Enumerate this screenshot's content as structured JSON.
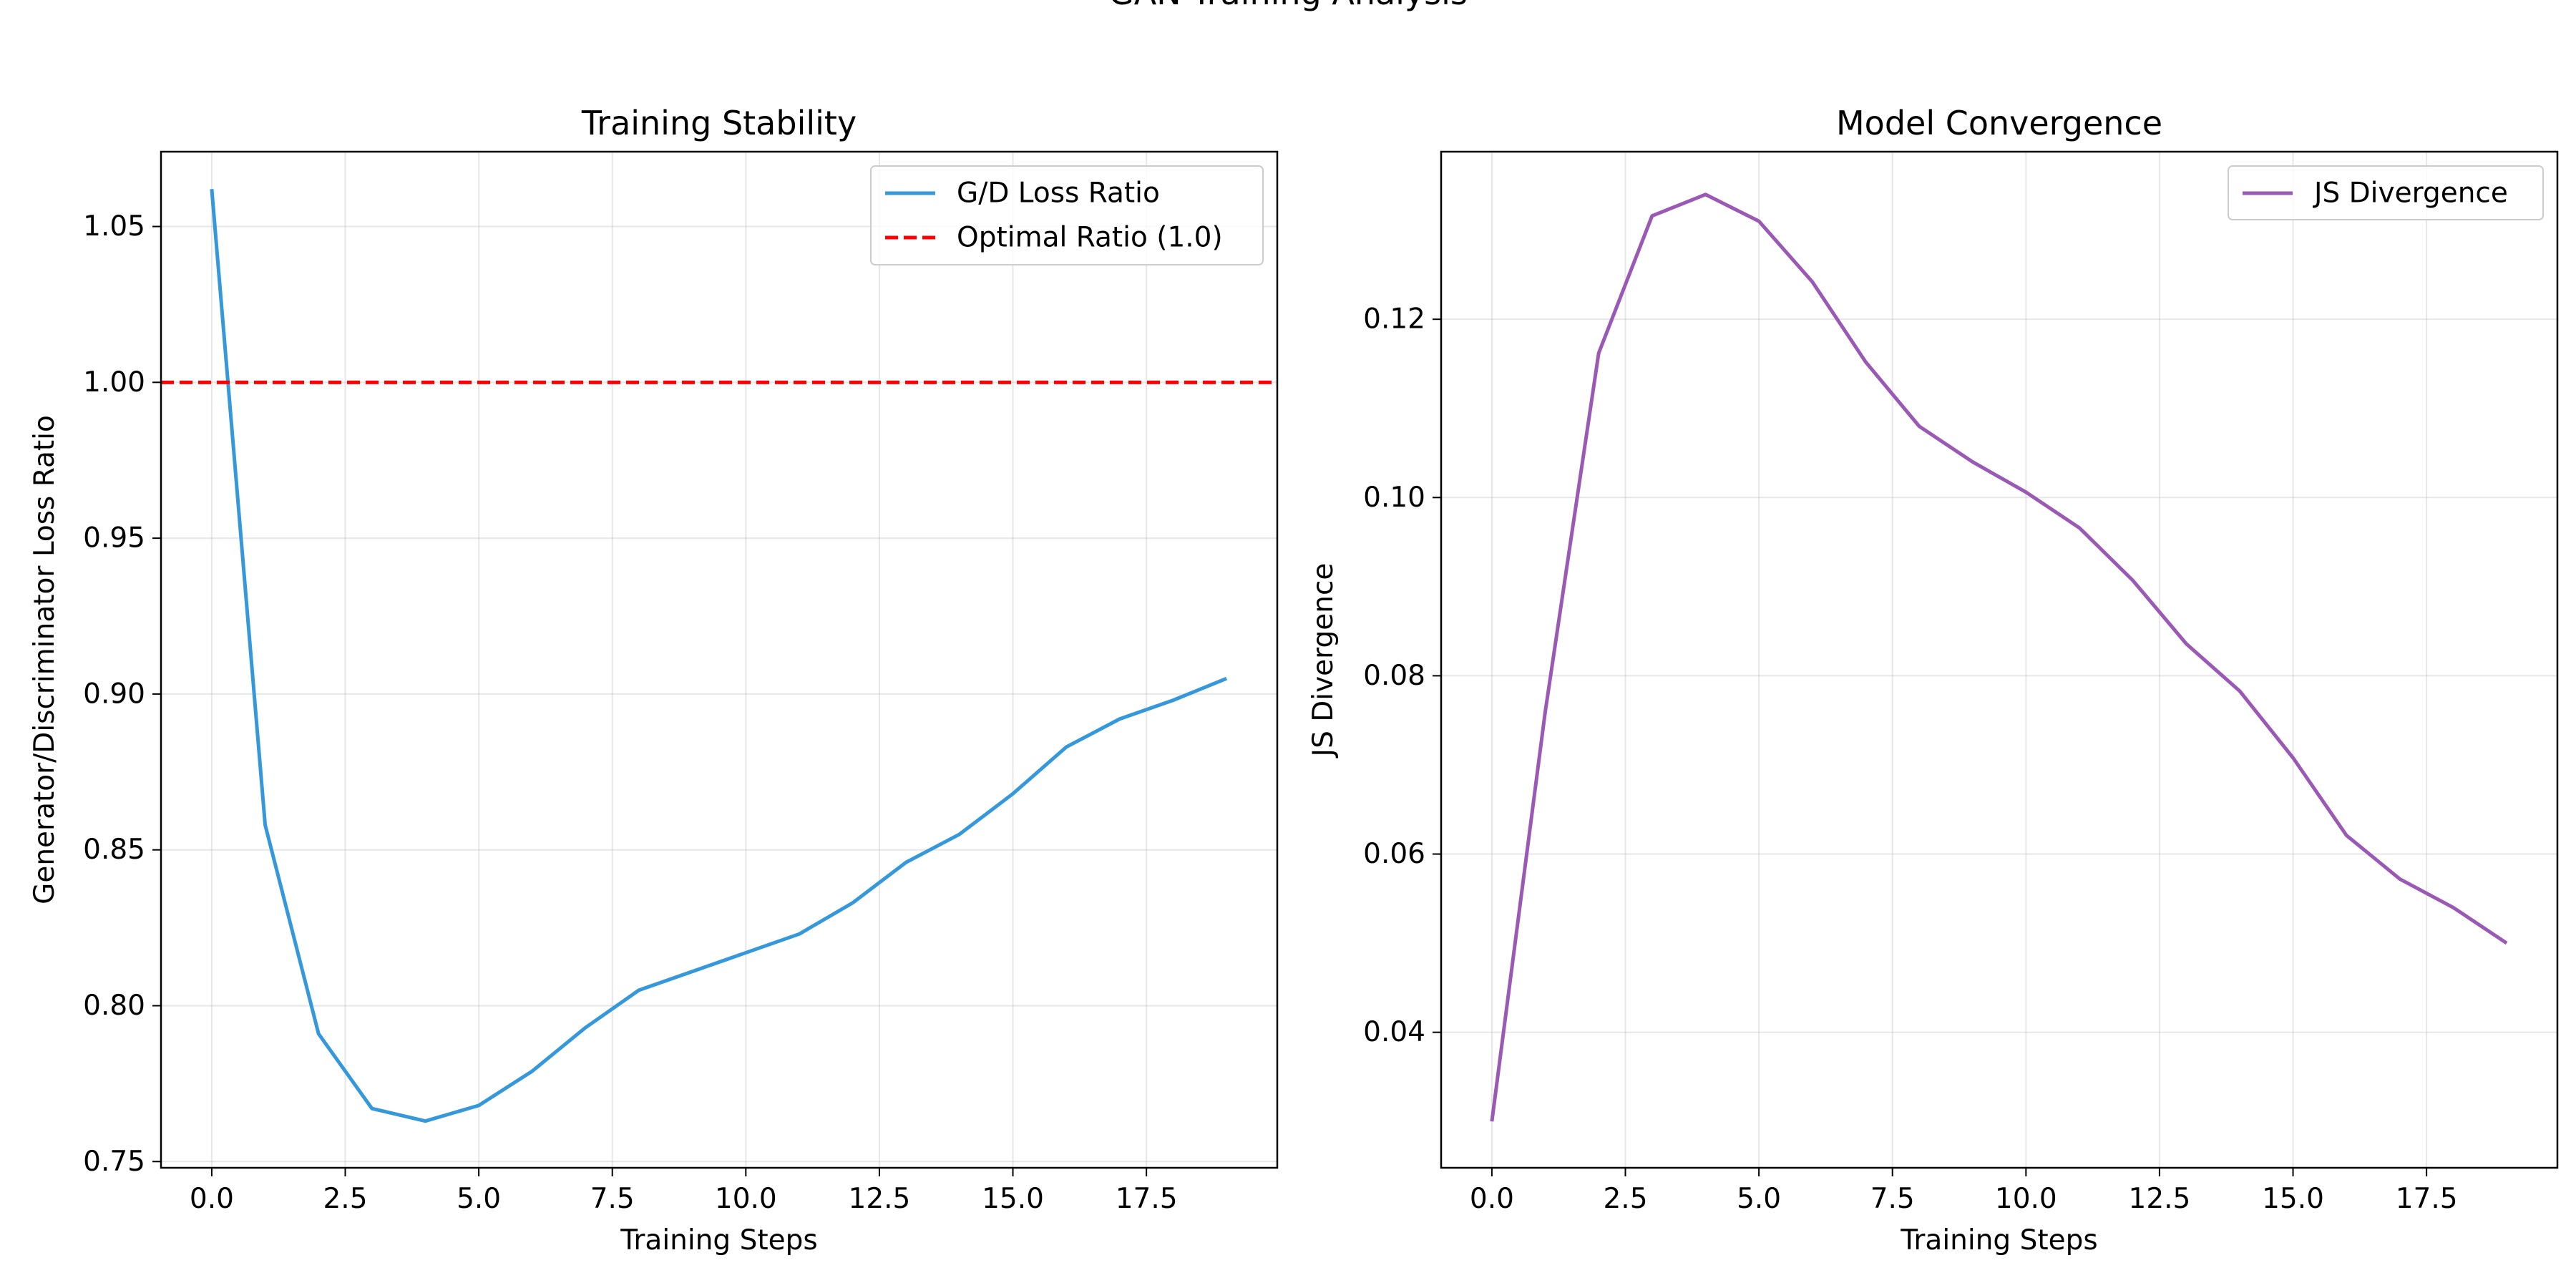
{
  "figure": {
    "suptitle": "GAN Training Analysis"
  },
  "chart_data": [
    {
      "type": "line",
      "title": "Training Stability",
      "xlabel": "Training Steps",
      "ylabel": "Generator/Discriminator Loss Ratio",
      "xlim": [
        -0.95,
        19.95
      ],
      "ylim": [
        0.748,
        1.074
      ],
      "x_ticks": [
        0.0,
        2.5,
        5.0,
        7.5,
        10.0,
        12.5,
        15.0,
        17.5
      ],
      "x_tick_labels": [
        "0.0",
        "2.5",
        "5.0",
        "7.5",
        "10.0",
        "12.5",
        "15.0",
        "17.5"
      ],
      "y_ticks": [
        0.75,
        0.8,
        0.85,
        0.9,
        0.95,
        1.0,
        1.05
      ],
      "y_tick_labels": [
        "0.75",
        "0.80",
        "0.85",
        "0.90",
        "0.95",
        "1.00",
        "1.05"
      ],
      "grid": true,
      "legend_position": "upper right",
      "x": [
        0,
        1,
        2,
        3,
        4,
        5,
        6,
        7,
        8,
        9,
        10,
        11,
        12,
        13,
        14,
        15,
        16,
        17,
        18,
        19
      ],
      "series": [
        {
          "name": "G/D Loss Ratio",
          "style": "solid",
          "color": "#3498db",
          "values": [
            1.062,
            0.858,
            0.791,
            0.767,
            0.763,
            0.768,
            0.779,
            0.793,
            0.805,
            0.811,
            0.817,
            0.823,
            0.833,
            0.846,
            0.855,
            0.868,
            0.883,
            0.892,
            0.898,
            0.905
          ]
        },
        {
          "name": "Optimal Ratio (1.0)",
          "style": "dashed",
          "color": "#ff0000",
          "kind": "hline",
          "y": 1.0
        }
      ]
    },
    {
      "type": "line",
      "title": "Model Convergence",
      "xlabel": "Training Steps",
      "ylabel": "JS Divergence",
      "xlim": [
        -0.95,
        19.95
      ],
      "ylim": [
        0.0248,
        0.1388
      ],
      "x_ticks": [
        0.0,
        2.5,
        5.0,
        7.5,
        10.0,
        12.5,
        15.0,
        17.5
      ],
      "x_tick_labels": [
        "0.0",
        "2.5",
        "5.0",
        "7.5",
        "10.0",
        "12.5",
        "15.0",
        "17.5"
      ],
      "y_ticks": [
        0.04,
        0.06,
        0.08,
        0.1,
        0.12
      ],
      "y_tick_labels": [
        "0.04",
        "0.06",
        "0.08",
        "0.10",
        "0.12"
      ],
      "grid": true,
      "legend_position": "upper right",
      "x": [
        0,
        1,
        2,
        3,
        4,
        5,
        6,
        7,
        8,
        9,
        10,
        11,
        12,
        13,
        14,
        15,
        16,
        17,
        18,
        19
      ],
      "series": [
        {
          "name": "JS Divergence",
          "style": "solid",
          "color": "#9b59b6",
          "values": [
            0.03,
            0.076,
            0.1162,
            0.1316,
            0.134,
            0.131,
            0.1242,
            0.1152,
            0.108,
            0.104,
            0.1006,
            0.0966,
            0.0907,
            0.0836,
            0.0783,
            0.0708,
            0.0621,
            0.0572,
            0.054,
            0.05
          ]
        }
      ]
    }
  ]
}
